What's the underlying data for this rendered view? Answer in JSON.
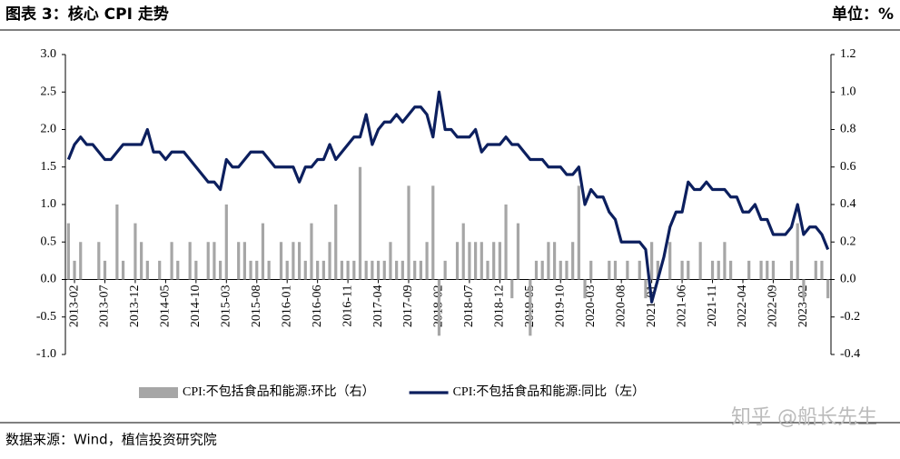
{
  "header": {
    "title": "图表 3：核心 CPI 走势",
    "unit": "单位：%"
  },
  "footer": {
    "source": "数据来源：Wind，植信投资研究院",
    "watermark": "知乎 @船长先生"
  },
  "chart_data": {
    "type": "bar-line",
    "categories": [
      null,
      "2013-02",
      null,
      null,
      null,
      null,
      "2013-07",
      null,
      null,
      null,
      null,
      "2013-12",
      null,
      null,
      null,
      null,
      "2014-05",
      null,
      null,
      null,
      null,
      "2014-10",
      null,
      null,
      null,
      null,
      "2015-03",
      null,
      null,
      null,
      null,
      "2015-08",
      null,
      null,
      null,
      null,
      "2016-01",
      null,
      null,
      null,
      null,
      "2016-06",
      null,
      null,
      null,
      null,
      "2016-11",
      null,
      null,
      null,
      null,
      "2017-04",
      null,
      null,
      null,
      null,
      "2017-09",
      null,
      null,
      null,
      null,
      "2018-02",
      null,
      null,
      null,
      null,
      "2018-07",
      null,
      null,
      null,
      null,
      "2018-12",
      null,
      null,
      null,
      null,
      "2019-05",
      null,
      null,
      null,
      null,
      "2019-10",
      null,
      null,
      null,
      null,
      "2020-03",
      null,
      null,
      null,
      null,
      "2020-08",
      null,
      null,
      null,
      null,
      "2021-01",
      null,
      null,
      null,
      null,
      "2021-06",
      null,
      null,
      null,
      null,
      "2021-11",
      null,
      null,
      null,
      null,
      "2022-04",
      null,
      null,
      null,
      null,
      "2022-09",
      null,
      null,
      null,
      null,
      "2023-02",
      null,
      null,
      null,
      null
    ],
    "series": [
      {
        "name": "CPI:不包括食品和能源:环比（右）",
        "type": "bar",
        "axis": "y2",
        "color": "#a6a6a6",
        "values": [
          0.3,
          0.1,
          0.2,
          0.0,
          0.0,
          0.2,
          0.1,
          0.0,
          0.4,
          0.1,
          0.0,
          0.3,
          0.2,
          0.1,
          0.0,
          0.1,
          0.0,
          0.2,
          0.1,
          0.0,
          0.2,
          0.1,
          0.0,
          0.2,
          0.2,
          0.1,
          0.4,
          0.0,
          0.2,
          0.2,
          0.1,
          0.1,
          0.3,
          0.1,
          0.0,
          0.2,
          0.1,
          0.2,
          0.2,
          0.1,
          0.3,
          0.1,
          0.1,
          0.2,
          0.4,
          0.1,
          0.1,
          0.1,
          0.6,
          0.1,
          0.1,
          0.1,
          0.1,
          0.2,
          0.1,
          0.1,
          0.5,
          0.1,
          0.1,
          0.2,
          0.5,
          -0.3,
          0.1,
          0.0,
          0.2,
          0.3,
          0.2,
          0.2,
          0.2,
          0.1,
          0.2,
          0.2,
          0.4,
          -0.1,
          0.3,
          0.0,
          -0.3,
          0.1,
          0.1,
          0.2,
          0.2,
          0.1,
          0.1,
          0.2,
          0.5,
          -0.1,
          0.1,
          0.0,
          0.0,
          0.1,
          0.1,
          0.0,
          0.1,
          0.0,
          0.1,
          -0.1,
          0.2,
          0.1,
          0.0,
          0.2,
          0.0,
          0.1,
          0.1,
          0.0,
          0.2,
          0.0,
          0.1,
          0.1,
          0.2,
          0.1,
          0.0,
          0.0,
          0.1,
          0.0,
          0.1,
          0.1,
          0.1,
          0.0,
          0.0,
          0.1,
          0.3,
          -0.1,
          0.0,
          0.1,
          0.1,
          -0.1
        ]
      },
      {
        "name": "CPI:不包括食品和能源:同比（左）",
        "type": "line",
        "color": "#0c1f5e",
        "values": [
          1.6,
          1.8,
          1.9,
          1.8,
          1.8,
          1.7,
          1.6,
          1.6,
          1.7,
          1.8,
          1.8,
          1.8,
          1.8,
          2.0,
          1.7,
          1.7,
          1.6,
          1.7,
          1.7,
          1.7,
          1.6,
          1.5,
          1.4,
          1.3,
          1.3,
          1.2,
          1.6,
          1.5,
          1.5,
          1.6,
          1.7,
          1.7,
          1.7,
          1.6,
          1.5,
          1.5,
          1.5,
          1.5,
          1.3,
          1.5,
          1.5,
          1.6,
          1.6,
          1.8,
          1.6,
          1.7,
          1.8,
          1.9,
          1.9,
          2.2,
          1.8,
          2.0,
          2.1,
          2.1,
          2.2,
          2.1,
          2.2,
          2.3,
          2.3,
          2.2,
          1.9,
          2.5,
          2.0,
          2.0,
          1.9,
          1.9,
          1.9,
          2.0,
          1.7,
          1.8,
          1.8,
          1.8,
          1.9,
          1.8,
          1.8,
          1.7,
          1.6,
          1.6,
          1.6,
          1.5,
          1.5,
          1.5,
          1.4,
          1.4,
          1.5,
          1.0,
          1.2,
          1.1,
          1.1,
          0.9,
          0.8,
          0.5,
          0.5,
          0.5,
          0.5,
          0.4,
          -0.3,
          0.0,
          0.3,
          0.7,
          0.9,
          0.9,
          1.3,
          1.2,
          1.2,
          1.3,
          1.2,
          1.2,
          1.2,
          1.1,
          1.1,
          0.9,
          0.9,
          1.0,
          0.8,
          0.8,
          0.6,
          0.6,
          0.6,
          0.7,
          1.0,
          0.6,
          0.7,
          0.7,
          0.6,
          0.4
        ]
      }
    ],
    "ylim": [
      -1,
      3
    ],
    "yticks": [
      {
        "value": -1,
        "label": "-1.0"
      },
      -0.5,
      {
        "value": 0,
        "label": "0.0"
      },
      0.5,
      {
        "value": 1,
        "label": "1.0"
      },
      1.5,
      {
        "value": 2,
        "label": "2.0"
      },
      2.5,
      {
        "value": 3,
        "label": "3.0"
      }
    ],
    "y2lim": [
      -0.4,
      1.2
    ],
    "y2ticks": [
      -0.4,
      -0.2,
      {
        "value": 0,
        "label": "0.0"
      },
      0.2,
      0.4,
      0.6,
      0.8,
      {
        "value": 1,
        "label": "1.0"
      },
      1.2
    ],
    "grid": false,
    "legend": "bottom"
  }
}
